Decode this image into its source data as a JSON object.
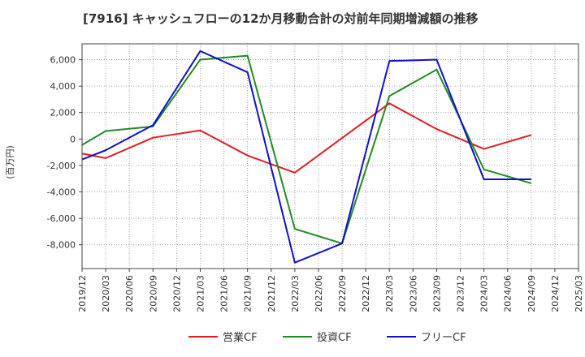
{
  "chart_data": {
    "type": "line",
    "title": "[7916]  キャッシュフローの12か月移動合計の対前年同期増減額の推移",
    "ylabel": "(百万円)",
    "xlabel": "",
    "ylim": [
      -9800,
      7200
    ],
    "yticks": [
      -8000,
      -6000,
      -4000,
      -2000,
      0,
      2000,
      4000,
      6000
    ],
    "ytick_labels": [
      "-8,000",
      "-6,000",
      "-4,000",
      "-2,000",
      "0",
      "2,000",
      "4,000",
      "6,000"
    ],
    "categories": [
      "2019/12",
      "2020/03",
      "2020/06",
      "2020/09",
      "2020/12",
      "2021/03",
      "2021/06",
      "2021/09",
      "2021/12",
      "2022/03",
      "2022/06",
      "2022/09",
      "2022/12",
      "2023/03",
      "2023/06",
      "2023/09",
      "2023/12",
      "2024/03",
      "2024/06",
      "2024/09",
      "2024/12",
      "2025/03"
    ],
    "grid": true,
    "legend_position": "bottom",
    "series": [
      {
        "name": "営業CF",
        "color": "#e02020",
        "values": [
          -1100,
          -1450,
          null,
          100,
          null,
          650,
          null,
          -1250,
          null,
          -2550,
          null,
          null,
          null,
          2700,
          null,
          750,
          null,
          -750,
          null,
          300,
          null,
          null
        ]
      },
      {
        "name": "投資CF",
        "color": "#228b22",
        "values": [
          -450,
          600,
          null,
          950,
          null,
          6000,
          null,
          6300,
          null,
          -6800,
          null,
          -7900,
          null,
          3250,
          null,
          5250,
          null,
          -2300,
          null,
          -3350,
          null,
          null
        ]
      },
      {
        "name": "フリーCF",
        "color": "#1010cc",
        "values": [
          -1550,
          -850,
          null,
          1050,
          null,
          6650,
          null,
          5050,
          null,
          -9350,
          null,
          -7900,
          null,
          5900,
          null,
          6000,
          null,
          -3050,
          null,
          -3050,
          null,
          null
        ]
      }
    ]
  }
}
